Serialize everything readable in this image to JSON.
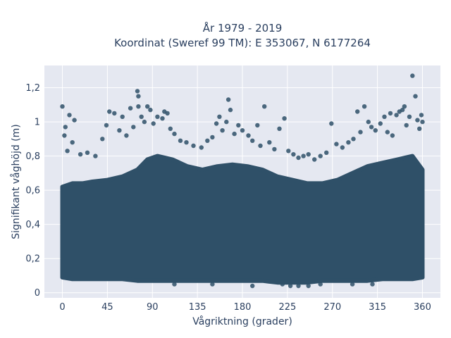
{
  "chart_data": {
    "type": "scatter",
    "title_line1": "År 1979 - 2019",
    "title_line2": "Koordinat (Sweref 99 TM): E 353067, N 6177264",
    "xlabel": "Vågriktning (grader)",
    "ylabel": "Signifikant våghöjd (m)",
    "xlim": [
      -18,
      378
    ],
    "ylim": [
      -0.03,
      1.33
    ],
    "xticks": [
      0,
      45,
      90,
      135,
      180,
      225,
      270,
      315,
      360
    ],
    "xtick_labels": [
      "0",
      "45",
      "90",
      "135",
      "180",
      "225",
      "270",
      "315",
      "360"
    ],
    "yticks": [
      0,
      0.2,
      0.4,
      0.6,
      0.8,
      1,
      1.2
    ],
    "ytick_labels": [
      "0",
      "0,2",
      "0,4",
      "0,6",
      "0,8",
      "1",
      "1,2"
    ],
    "grid": true,
    "marker_color": "#2f5068",
    "plot_background": "#e5e8f1",
    "dense_band": {
      "x": [
        0,
        10,
        20,
        30,
        45,
        60,
        75,
        85,
        95,
        110,
        125,
        140,
        155,
        170,
        185,
        200,
        215,
        230,
        245,
        260,
        275,
        290,
        305,
        320,
        335,
        350,
        360
      ],
      "y_low": [
        0.09,
        0.08,
        0.08,
        0.08,
        0.08,
        0.08,
        0.07,
        0.07,
        0.07,
        0.07,
        0.07,
        0.07,
        0.07,
        0.07,
        0.07,
        0.07,
        0.06,
        0.06,
        0.06,
        0.07,
        0.07,
        0.07,
        0.07,
        0.08,
        0.08,
        0.08,
        0.09
      ],
      "y_high": [
        0.62,
        0.64,
        0.64,
        0.65,
        0.66,
        0.68,
        0.72,
        0.78,
        0.8,
        0.78,
        0.74,
        0.72,
        0.74,
        0.75,
        0.74,
        0.72,
        0.68,
        0.66,
        0.64,
        0.64,
        0.66,
        0.7,
        0.74,
        0.76,
        0.78,
        0.8,
        0.72
      ]
    },
    "points": [
      {
        "x": 0,
        "y": 1.09
      },
      {
        "x": 3,
        "y": 0.97
      },
      {
        "x": 7,
        "y": 1.04
      },
      {
        "x": 12,
        "y": 1.01
      },
      {
        "x": 2,
        "y": 0.92
      },
      {
        "x": 10,
        "y": 0.88
      },
      {
        "x": 5,
        "y": 0.83
      },
      {
        "x": 18,
        "y": 0.81
      },
      {
        "x": 25,
        "y": 0.82
      },
      {
        "x": 33,
        "y": 0.8
      },
      {
        "x": 40,
        "y": 0.9
      },
      {
        "x": 44,
        "y": 0.98
      },
      {
        "x": 47,
        "y": 1.06
      },
      {
        "x": 52,
        "y": 1.05
      },
      {
        "x": 57,
        "y": 0.95
      },
      {
        "x": 60,
        "y": 1.03
      },
      {
        "x": 64,
        "y": 0.92
      },
      {
        "x": 68,
        "y": 1.08
      },
      {
        "x": 71,
        "y": 0.97
      },
      {
        "x": 75,
        "y": 1.18
      },
      {
        "x": 76,
        "y": 1.15
      },
      {
        "x": 76,
        "y": 1.09
      },
      {
        "x": 79,
        "y": 1.03
      },
      {
        "x": 82,
        "y": 1.0
      },
      {
        "x": 85,
        "y": 1.09
      },
      {
        "x": 88,
        "y": 1.07
      },
      {
        "x": 91,
        "y": 0.99
      },
      {
        "x": 95,
        "y": 1.03
      },
      {
        "x": 100,
        "y": 1.02
      },
      {
        "x": 102,
        "y": 1.06
      },
      {
        "x": 105,
        "y": 1.05
      },
      {
        "x": 108,
        "y": 0.96
      },
      {
        "x": 112,
        "y": 0.93
      },
      {
        "x": 118,
        "y": 0.89
      },
      {
        "x": 124,
        "y": 0.88
      },
      {
        "x": 131,
        "y": 0.86
      },
      {
        "x": 139,
        "y": 0.85
      },
      {
        "x": 145,
        "y": 0.89
      },
      {
        "x": 150,
        "y": 0.91
      },
      {
        "x": 154,
        "y": 0.99
      },
      {
        "x": 157,
        "y": 1.03
      },
      {
        "x": 160,
        "y": 0.95
      },
      {
        "x": 164,
        "y": 1.0
      },
      {
        "x": 166,
        "y": 1.13
      },
      {
        "x": 168,
        "y": 1.07
      },
      {
        "x": 172,
        "y": 0.93
      },
      {
        "x": 176,
        "y": 0.98
      },
      {
        "x": 180,
        "y": 0.95
      },
      {
        "x": 186,
        "y": 0.92
      },
      {
        "x": 190,
        "y": 0.89
      },
      {
        "x": 195,
        "y": 0.98
      },
      {
        "x": 198,
        "y": 0.86
      },
      {
        "x": 202,
        "y": 1.09
      },
      {
        "x": 207,
        "y": 0.88
      },
      {
        "x": 212,
        "y": 0.84
      },
      {
        "x": 217,
        "y": 0.96
      },
      {
        "x": 222,
        "y": 1.02
      },
      {
        "x": 226,
        "y": 0.83
      },
      {
        "x": 231,
        "y": 0.81
      },
      {
        "x": 236,
        "y": 0.79
      },
      {
        "x": 241,
        "y": 0.8
      },
      {
        "x": 246,
        "y": 0.81
      },
      {
        "x": 252,
        "y": 0.78
      },
      {
        "x": 258,
        "y": 0.8
      },
      {
        "x": 264,
        "y": 0.82
      },
      {
        "x": 269,
        "y": 0.99
      },
      {
        "x": 274,
        "y": 0.87
      },
      {
        "x": 280,
        "y": 0.85
      },
      {
        "x": 286,
        "y": 0.88
      },
      {
        "x": 291,
        "y": 0.9
      },
      {
        "x": 295,
        "y": 1.06
      },
      {
        "x": 298,
        "y": 0.94
      },
      {
        "x": 302,
        "y": 1.09
      },
      {
        "x": 306,
        "y": 1.0
      },
      {
        "x": 309,
        "y": 0.97
      },
      {
        "x": 313,
        "y": 0.95
      },
      {
        "x": 318,
        "y": 0.99
      },
      {
        "x": 322,
        "y": 1.03
      },
      {
        "x": 325,
        "y": 0.94
      },
      {
        "x": 328,
        "y": 1.05
      },
      {
        "x": 330,
        "y": 0.92
      },
      {
        "x": 334,
        "y": 1.04
      },
      {
        "x": 337,
        "y": 1.06
      },
      {
        "x": 340,
        "y": 1.07
      },
      {
        "x": 342,
        "y": 1.09
      },
      {
        "x": 344,
        "y": 0.98
      },
      {
        "x": 347,
        "y": 1.03
      },
      {
        "x": 350,
        "y": 1.27
      },
      {
        "x": 353,
        "y": 1.15
      },
      {
        "x": 355,
        "y": 1.01
      },
      {
        "x": 357,
        "y": 0.96
      },
      {
        "x": 359,
        "y": 1.04
      },
      {
        "x": 360,
        "y": 1.0
      },
      {
        "x": 112,
        "y": 0.05
      },
      {
        "x": 150,
        "y": 0.05
      },
      {
        "x": 190,
        "y": 0.04
      },
      {
        "x": 220,
        "y": 0.05
      },
      {
        "x": 228,
        "y": 0.04
      },
      {
        "x": 236,
        "y": 0.04
      },
      {
        "x": 246,
        "y": 0.04
      },
      {
        "x": 258,
        "y": 0.05
      },
      {
        "x": 290,
        "y": 0.05
      },
      {
        "x": 310,
        "y": 0.05
      }
    ]
  }
}
